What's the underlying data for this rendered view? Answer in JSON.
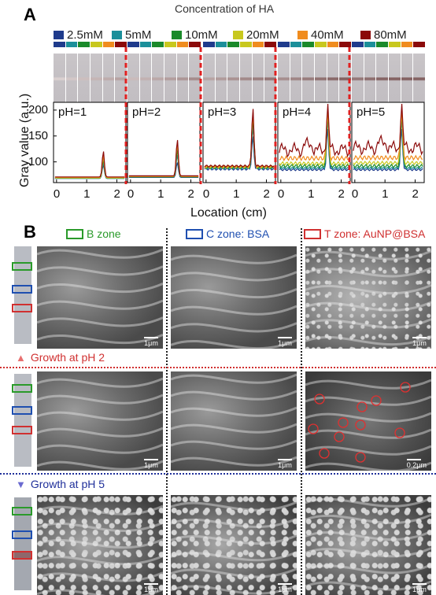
{
  "panel_a": {
    "letter": "A",
    "legend_title": "Concentration of HA",
    "legend": [
      {
        "label": "2.5mM",
        "color": "#1f3b8c"
      },
      {
        "label": "5mM",
        "color": "#1b8f9a"
      },
      {
        "label": "10mM",
        "color": "#1a8a2a"
      },
      {
        "label": "20mM",
        "color": "#c8c81e"
      },
      {
        "label": "40mM",
        "color": "#f08c1e"
      },
      {
        "label": "80mM",
        "color": "#8b0a0a"
      }
    ],
    "ylabel": "Gray value (a.u.)",
    "xlabel": "Location (cm)",
    "yticks": [
      "200",
      "150",
      "100"
    ],
    "xticks": [
      "0",
      "1",
      "2"
    ]
  },
  "chart_data": {
    "type": "line",
    "xlabel": "Location (cm)",
    "ylabel": "Gray value (a.u.)",
    "ylim": [
      60,
      215
    ],
    "xlim": [
      -0.1,
      2.3
    ],
    "panels": [
      {
        "label": "pH=1",
        "baseline": [
          68,
          68,
          69,
          69,
          70,
          71
        ],
        "peak": [
          95,
          100,
          105,
          110,
          115,
          122
        ],
        "noise": [
          0,
          0,
          0,
          0,
          0,
          0
        ]
      },
      {
        "label": "pH=2",
        "baseline": [
          70,
          71,
          71,
          72,
          72,
          73
        ],
        "peak": [
          100,
          115,
          125,
          135,
          140,
          145
        ],
        "noise": [
          0,
          0,
          0,
          0,
          0,
          0
        ]
      },
      {
        "label": "pH=3",
        "baseline": [
          86,
          88,
          89,
          90,
          91,
          92
        ],
        "peak": [
          150,
          170,
          185,
          195,
          200,
          205
        ],
        "noise": [
          2,
          2,
          2,
          2,
          2,
          2
        ]
      },
      {
        "label": "pH=4",
        "baseline": [
          85,
          88,
          92,
          97,
          107,
          123
        ],
        "peak": [
          165,
          185,
          195,
          200,
          205,
          210
        ],
        "noise": [
          2,
          2,
          3,
          3,
          4,
          6
        ]
      },
      {
        "label": "pH=5",
        "baseline": [
          85,
          88,
          92,
          98,
          108,
          127
        ],
        "peak": [
          165,
          185,
          195,
          200,
          205,
          210
        ],
        "noise": [
          2,
          2,
          3,
          3,
          4,
          6
        ]
      }
    ],
    "series": [
      {
        "name": "2.5mM",
        "color": "#1f3b8c"
      },
      {
        "name": "5mM",
        "color": "#1b8f9a"
      },
      {
        "name": "10mM",
        "color": "#1a8a2a"
      },
      {
        "name": "20mM",
        "color": "#c8c81e"
      },
      {
        "name": "40mM",
        "color": "#f08c1e"
      },
      {
        "name": "80mM",
        "color": "#8b0a0a"
      }
    ]
  },
  "panel_b": {
    "letter": "B",
    "zones": [
      {
        "label": "B zone",
        "color": "#2a9a2a"
      },
      {
        "label": "C zone: BSA",
        "color": "#1f4fb0"
      },
      {
        "label": "T zone: AuNP@BSA",
        "color": "#d03030"
      }
    ],
    "growth_ph2": {
      "label": "Growth at pH 2",
      "color": "#d03030"
    },
    "growth_ph5": {
      "label": "Growth at pH 5",
      "color": "#1f2f9a"
    },
    "scale_1um": "1μm",
    "scale_02um": "0.2μm"
  }
}
